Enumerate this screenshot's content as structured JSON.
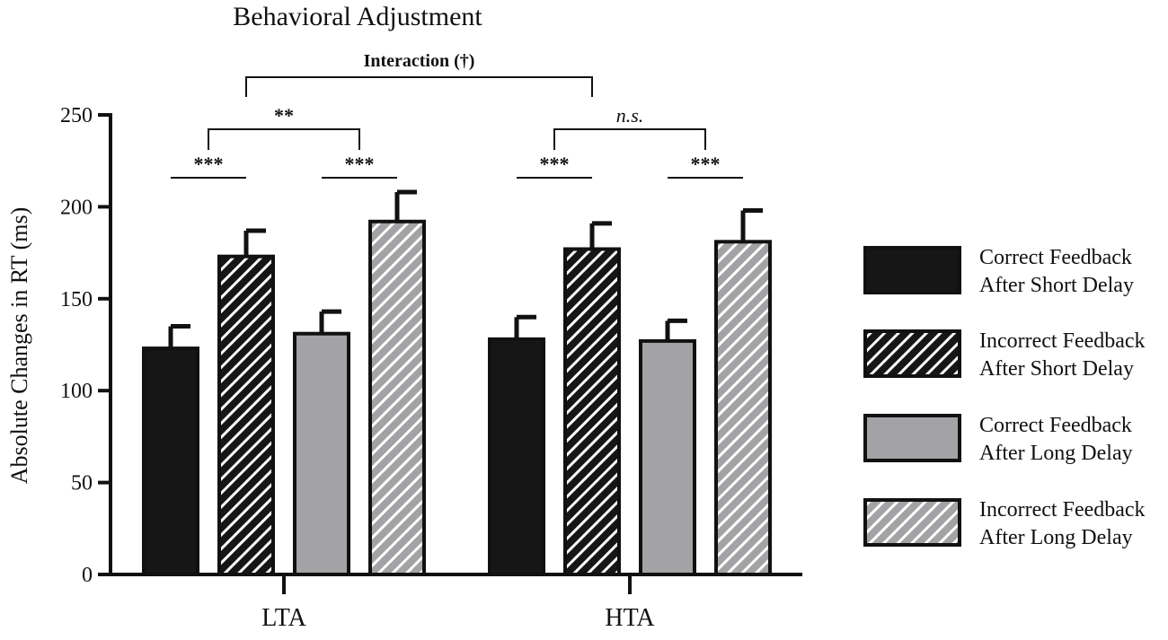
{
  "chart_data": {
    "type": "bar",
    "title": "Behavioral Adjustment",
    "xlabel": "",
    "ylabel": "Absolute Changes in RT  (ms)",
    "ylim": [
      0,
      250
    ],
    "yticks": [
      "0",
      "50",
      "100",
      "150",
      "200",
      "250"
    ],
    "grid": false,
    "legend_position": "right",
    "categories": [
      "LTA",
      "HTA"
    ],
    "series": [
      {
        "name": "Correct Feedback After Short Delay",
        "legend_lines": [
          "Correct Feedback",
          "After Short Delay"
        ],
        "values": [
          123,
          128
        ],
        "errors": [
          12,
          12
        ],
        "fill": "#161616",
        "hatch": false
      },
      {
        "name": "Incorrect Feedback After Short Delay",
        "legend_lines": [
          "Incorrect Feedback",
          "After Short Delay"
        ],
        "values": [
          173,
          177
        ],
        "errors": [
          14,
          14
        ],
        "fill": "#161616",
        "hatch": true
      },
      {
        "name": "Correct Feedback After Long Delay",
        "legend_lines": [
          "Correct Feedback",
          "After Long Delay"
        ],
        "values": [
          131,
          127
        ],
        "errors": [
          12,
          11
        ],
        "fill": "#a3a3a6",
        "hatch": false
      },
      {
        "name": "Incorrect Feedback After Long Delay",
        "legend_lines": [
          "Incorrect Feedback",
          "After Long Delay"
        ],
        "values": [
          192,
          181
        ],
        "errors": [
          16,
          17
        ],
        "fill": "#a3a3a6",
        "hatch": true
      }
    ],
    "annotations": [
      {
        "label": "***",
        "group": 0,
        "from": 0,
        "to": 1,
        "level": "low",
        "style": "bold"
      },
      {
        "label": "***",
        "group": 0,
        "from": 2,
        "to": 3,
        "level": "low",
        "style": "bold"
      },
      {
        "label": "***",
        "group": 1,
        "from": 0,
        "to": 1,
        "level": "low",
        "style": "bold"
      },
      {
        "label": "***",
        "group": 1,
        "from": 2,
        "to": 3,
        "level": "low",
        "style": "bold"
      },
      {
        "label": "**",
        "group": 0,
        "level": "mid",
        "style": "bold"
      },
      {
        "label": "n.s.",
        "group": 1,
        "level": "mid",
        "style": "italic"
      },
      {
        "label": "Interaction (†)",
        "level": "top",
        "style": "bold"
      }
    ],
    "colors": {
      "axis": "#111111",
      "dark": "#161616",
      "light": "#a3a3a6",
      "hatch_line": "#ffffff"
    }
  }
}
